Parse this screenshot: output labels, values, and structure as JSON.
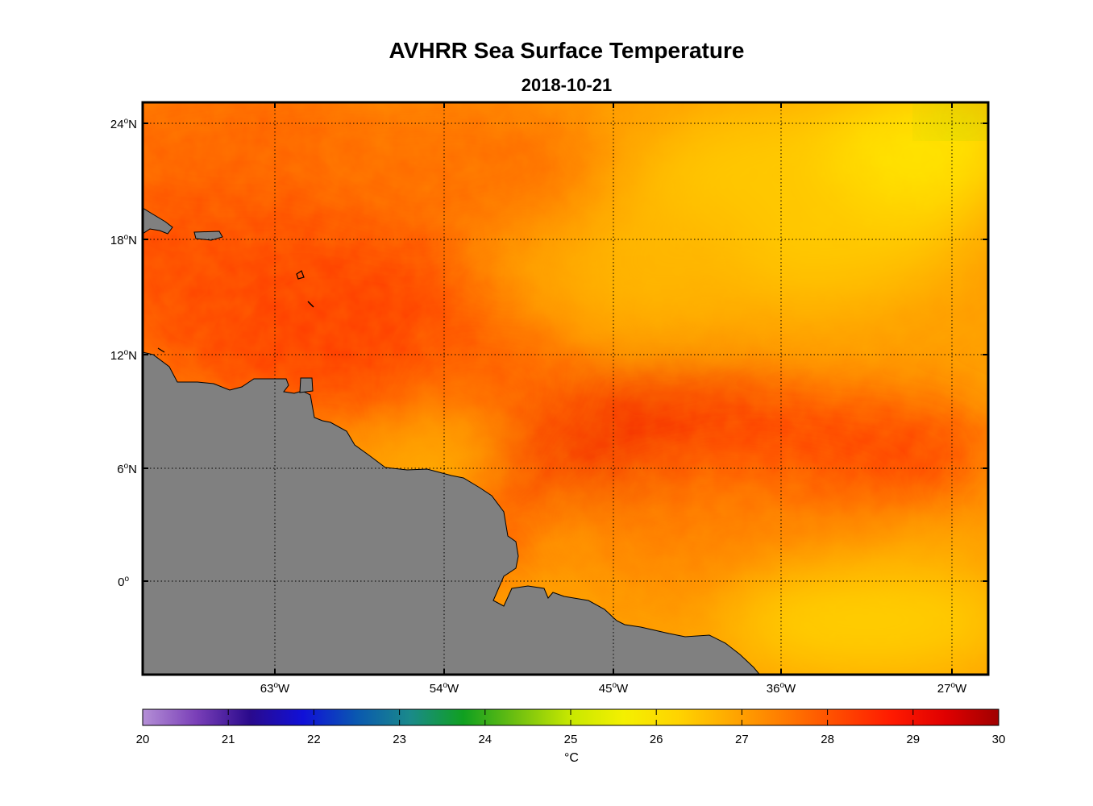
{
  "title": "AVHRR Sea Surface Temperature",
  "subtitle": "2018-10-21",
  "lat_ticks": [
    {
      "deg": "24",
      "hemi": "N"
    },
    {
      "deg": "18",
      "hemi": "N"
    },
    {
      "deg": "12",
      "hemi": "N"
    },
    {
      "deg": "6",
      "hemi": "N"
    },
    {
      "deg": "0",
      "hemi": ""
    }
  ],
  "lon_ticks": [
    {
      "deg": "63",
      "hemi": "W"
    },
    {
      "deg": "54",
      "hemi": "W"
    },
    {
      "deg": "45",
      "hemi": "W"
    },
    {
      "deg": "36",
      "hemi": "W"
    },
    {
      "deg": "27",
      "hemi": "W"
    }
  ],
  "colorbar": {
    "min": 20,
    "max": 30,
    "tick_labels": [
      "20",
      "21",
      "22",
      "23",
      "24",
      "25",
      "26",
      "27",
      "28",
      "29",
      "30"
    ],
    "unit": "°C",
    "colors": [
      "#b48fd6",
      "#7a3fb8",
      "#2a0a8c",
      "#1010d8",
      "#0a58b0",
      "#1a8a8a",
      "#10a020",
      "#70c010",
      "#c8e800",
      "#f4f000",
      "#ffd400",
      "#ffa800",
      "#ff7a00",
      "#ff4a00",
      "#ff1a00",
      "#e00000",
      "#a00000"
    ]
  },
  "colors": {
    "land": "#808080",
    "frame": "#000000"
  },
  "chart_data": {
    "type": "heatmap",
    "title": "AVHRR Sea Surface Temperature",
    "subtitle": "2018-10-21",
    "variable": "sea surface temperature",
    "unit": "°C",
    "color_range": [
      20,
      30
    ],
    "lon_range": [
      -70,
      -25
    ],
    "lat_range": [
      -5,
      25
    ],
    "grid": true,
    "colorbar_placement": "bottom",
    "approx_regions": [
      {
        "region": "northwest (Caribbean)",
        "sst": 28.8
      },
      {
        "region": "central band 5-9N, 50-35W",
        "sst": 29.2
      },
      {
        "region": "northeast 20-25N, 36-26W",
        "sst": 27.0
      },
      {
        "region": "far northeast corner",
        "sst": 25.6
      },
      {
        "region": "southeast 0-5S, 36-26W",
        "sst": 27.0
      }
    ]
  }
}
